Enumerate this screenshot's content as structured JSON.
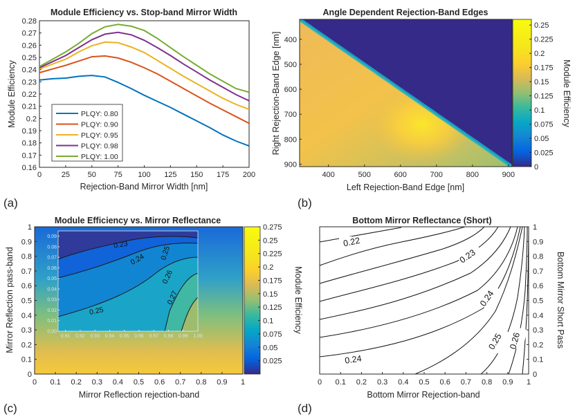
{
  "panel_labels": [
    "(a)",
    "(b)",
    "(c)",
    "(d)"
  ],
  "chart_data": [
    {
      "id": "a",
      "type": "line",
      "title": "Module Efficiency vs. Stop-band Mirror Width",
      "xlabel": "Rejection-Band Mirror Width [nm]",
      "ylabel": "Module Efficiency",
      "xlim": [
        0,
        200
      ],
      "ylim": [
        0.16,
        0.28
      ],
      "xticks": [
        "0",
        "25",
        "50",
        "75",
        "100",
        "125",
        "150",
        "175",
        "200"
      ],
      "yticks": [
        "0.16",
        "0.17",
        "0.18",
        "0.19",
        "0.2",
        "0.21",
        "0.22",
        "0.23",
        "0.24",
        "0.25",
        "0.26",
        "0.27",
        "0.28"
      ],
      "legend_position": "lower-left",
      "x": [
        0,
        12.5,
        25,
        37.5,
        50,
        62.5,
        75,
        87.5,
        100,
        112.5,
        125,
        137.5,
        150,
        162.5,
        175,
        187.5,
        200
      ],
      "series": [
        {
          "name": "PLQY: 0.80",
          "color": "#0072BD",
          "values": [
            0.2315,
            0.2325,
            0.233,
            0.2345,
            0.2352,
            0.234,
            0.2295,
            0.2245,
            0.219,
            0.214,
            0.209,
            0.2035,
            0.198,
            0.1925,
            0.1865,
            0.1815,
            0.1775
          ]
        },
        {
          "name": "PLQY: 0.90",
          "color": "#D95319",
          "values": [
            0.2375,
            0.2405,
            0.2435,
            0.247,
            0.2505,
            0.2512,
            0.2495,
            0.246,
            0.2415,
            0.2365,
            0.2305,
            0.2245,
            0.2185,
            0.2125,
            0.207,
            0.2015,
            0.196
          ]
        },
        {
          "name": "PLQY: 0.95",
          "color": "#EDB120",
          "values": [
            0.2405,
            0.2445,
            0.2485,
            0.2545,
            0.2595,
            0.2625,
            0.262,
            0.2585,
            0.254,
            0.2475,
            0.241,
            0.2345,
            0.2285,
            0.2225,
            0.2165,
            0.2115,
            0.2075
          ]
        },
        {
          "name": "PLQY: 0.98",
          "color": "#7E2F8E",
          "values": [
            0.2415,
            0.2465,
            0.2515,
            0.258,
            0.2645,
            0.269,
            0.2705,
            0.2685,
            0.264,
            0.258,
            0.2515,
            0.2445,
            0.238,
            0.2315,
            0.2255,
            0.2195,
            0.2145
          ]
        },
        {
          "name": "PLQY: 1.00",
          "color": "#77AC30",
          "values": [
            0.2425,
            0.2485,
            0.2545,
            0.2615,
            0.2695,
            0.275,
            0.277,
            0.2755,
            0.272,
            0.2655,
            0.258,
            0.2505,
            0.2435,
            0.2365,
            0.2305,
            0.2245,
            0.2215
          ]
        }
      ]
    },
    {
      "id": "b",
      "type": "heatmap",
      "title": "Angle Dependent Rejection-Band Edges",
      "xlabel": "Left Rejection-Band Edge [nm]",
      "ylabel": "Right Rejection-Band Edge [nm]",
      "xlim": [
        320,
        910
      ],
      "ylim": [
        910,
        320
      ],
      "xticks": [
        "400",
        "500",
        "600",
        "700",
        "800",
        "900"
      ],
      "yticks": [
        "400",
        "500",
        "600",
        "700",
        "800",
        "900"
      ],
      "colorbar_label": "Module Efficiency",
      "clim": [
        0,
        0.26
      ],
      "colorbar_ticks": [
        "0",
        "0.025",
        "0.05",
        "0.075",
        "0.1",
        "0.125",
        "0.15",
        "0.175",
        "0.2",
        "0.225",
        "0.25"
      ],
      "peak": {
        "x": 630,
        "y": 740,
        "value": 0.25
      },
      "masked_region": "right edge < left edge",
      "colormap": "parula"
    },
    {
      "id": "c",
      "type": "heatmap",
      "title": "Module Efficiency vs. Mirror Reflectance",
      "xlabel": "Mirror Reflection rejection-band",
      "ylabel": "Mirror Reflection pass-band",
      "xlim": [
        0,
        1
      ],
      "ylim": [
        0,
        1
      ],
      "xticks": [
        "0",
        "0.1",
        "0.2",
        "0.3",
        "0.4",
        "0.5",
        "0.6",
        "0.7",
        "0.8",
        "0.9",
        "1"
      ],
      "yticks": [
        "0",
        "0.1",
        "0.2",
        "0.3",
        "0.4",
        "0.5",
        "0.6",
        "0.7",
        "0.8",
        "0.9",
        "1"
      ],
      "colorbar_label": "Module Efficiency",
      "clim": [
        0,
        0.275
      ],
      "colorbar_ticks": [
        "0.025",
        "0.05",
        "0.075",
        "0.1",
        "0.125",
        "0.15",
        "0.175",
        "0.2",
        "0.225",
        "0.25",
        "0.275"
      ],
      "inset": {
        "xlim": [
          0.905,
          1.0
        ],
        "ylim": [
          0,
          0.095
        ],
        "xticks": [
          "0.91",
          "0.92",
          "0.93",
          "0.94",
          "0.95",
          "0.96",
          "0.97",
          "0.98",
          "0.99",
          "1.00"
        ],
        "yticks": [
          "0.00",
          "0.01",
          "0.02",
          "0.03",
          "0.04",
          "0.05",
          "0.06",
          "0.07",
          "0.08",
          "0.09"
        ],
        "contour_levels": [
          "0.23",
          "0.24",
          "0.25",
          "0.26",
          "0.27",
          "0.25"
        ]
      }
    },
    {
      "id": "d",
      "type": "contour",
      "title": "Bottom Mirror Reflectance (Short)",
      "xlabel": "Bottom Mirror Rejection-band",
      "ylabel": "Bottom Mirror Short Pass",
      "xlim": [
        0,
        1
      ],
      "ylim": [
        0,
        1
      ],
      "xticks": [
        "0",
        "0.1",
        "0.2",
        "0.3",
        "0.4",
        "0.5",
        "0.6",
        "0.7",
        "0.8",
        "0.9",
        "1"
      ],
      "yticks": [
        "0",
        "0.1",
        "0.2",
        "0.3",
        "0.4",
        "0.5",
        "0.6",
        "0.7",
        "0.8",
        "0.9",
        "1"
      ],
      "contour_labels": [
        "0.22",
        "0.23",
        "0.24",
        "0.25",
        "0.26",
        "0.24"
      ]
    }
  ]
}
